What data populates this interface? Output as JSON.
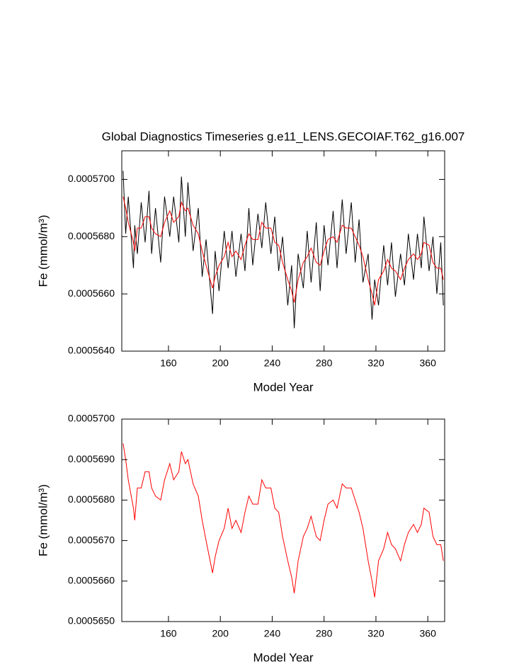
{
  "chart_data": [
    {
      "type": "line",
      "title": "Global Diagnostics Timeseries g.e11_LENS.GECOIAF.T62_g16.007",
      "xlabel": "Model Year",
      "ylabel": "Fe (mmol/m³)",
      "x": [
        125,
        127,
        129,
        133,
        134,
        136,
        139,
        142,
        145,
        147,
        150,
        154,
        157,
        161,
        164,
        168,
        170,
        173,
        175,
        179,
        183,
        186,
        189,
        194,
        196,
        199,
        203,
        206,
        209,
        212,
        216,
        219,
        222,
        225,
        229,
        232,
        235,
        239,
        242,
        245,
        248,
        252,
        255,
        257,
        260,
        264,
        267,
        270,
        274,
        277,
        280,
        283,
        287,
        290,
        294,
        297,
        301,
        304,
        307,
        310,
        314,
        317,
        319,
        322,
        326,
        329,
        332,
        335,
        339,
        342,
        345,
        349,
        352,
        355,
        357,
        361,
        364,
        367,
        370,
        372
      ],
      "series": [
        {
          "color": "#000000",
          "values": [
            0.0005703,
            0.0005681,
            0.0005694,
            0.0005669,
            0.0005684,
            0.0005674,
            0.0005692,
            0.0005678,
            0.0005696,
            0.0005674,
            0.000569,
            0.0005671,
            0.0005694,
            0.000568,
            0.0005694,
            0.0005678,
            0.0005701,
            0.000568,
            0.0005699,
            0.0005675,
            0.000569,
            0.0005666,
            0.0005679,
            0.0005653,
            0.0005675,
            0.0005661,
            0.0005682,
            0.0005669,
            0.0005682,
            0.0005666,
            0.0005681,
            0.0005668,
            0.000569,
            0.000567,
            0.0005688,
            0.0005676,
            0.0005692,
            0.0005674,
            0.0005687,
            0.0005668,
            0.000568,
            0.0005656,
            0.000567,
            0.0005648,
            0.0005674,
            0.0005662,
            0.0005682,
            0.0005664,
            0.0005685,
            0.0005661,
            0.0005684,
            0.000567,
            0.0005689,
            0.0005669,
            0.0005693,
            0.0005674,
            0.0005692,
            0.0005671,
            0.0005686,
            0.0005664,
            0.0005674,
            0.0005651,
            0.0005665,
            0.0005656,
            0.0005677,
            0.0005663,
            0.0005678,
            0.0005659,
            0.0005674,
            0.0005663,
            0.0005681,
            0.0005665,
            0.0005681,
            0.0005669,
            0.0005687,
            0.0005668,
            0.000568,
            0.000566,
            0.0005678,
            0.0005656
          ]
        },
        {
          "color": "#ff0000",
          "values": [
            0.0005694,
            0.000569,
            0.0005685,
            0.0005678,
            0.0005675,
            0.0005683,
            0.0005683,
            0.0005687,
            0.0005687,
            0.0005683,
            0.0005681,
            0.000568,
            0.0005685,
            0.0005689,
            0.0005685,
            0.0005687,
            0.0005692,
            0.0005689,
            0.000569,
            0.0005684,
            0.0005681,
            0.0005675,
            0.000567,
            0.0005662,
            0.0005666,
            0.000567,
            0.0005673,
            0.0005678,
            0.0005673,
            0.0005675,
            0.0005672,
            0.0005677,
            0.0005681,
            0.0005679,
            0.0005679,
            0.0005685,
            0.0005683,
            0.0005683,
            0.0005678,
            0.0005677,
            0.0005671,
            0.0005665,
            0.0005661,
            0.0005657,
            0.0005665,
            0.0005671,
            0.0005673,
            0.0005676,
            0.0005671,
            0.000567,
            0.0005675,
            0.0005679,
            0.000568,
            0.0005678,
            0.0005684,
            0.0005683,
            0.0005683,
            0.000568,
            0.0005677,
            0.0005673,
            0.0005665,
            0.000566,
            0.0005656,
            0.0005665,
            0.0005668,
            0.0005672,
            0.0005669,
            0.0005668,
            0.0005665,
            0.0005669,
            0.0005672,
            0.0005674,
            0.0005672,
            0.0005674,
            0.0005678,
            0.0005677,
            0.0005671,
            0.0005669,
            0.0005669,
            0.0005665
          ]
        }
      ],
      "xlim": [
        124,
        373
      ],
      "xticks": [
        160,
        200,
        240,
        280,
        320,
        360
      ],
      "ylim": [
        0.000564,
        0.000571
      ],
      "yticks": [
        {
          "value": 0.000564,
          "label": "0.0005640"
        },
        {
          "value": 0.000566,
          "label": "0.0005660"
        },
        {
          "value": 0.000568,
          "label": "0.0005680"
        },
        {
          "value": 0.00057,
          "label": "0.0005700"
        }
      ]
    },
    {
      "type": "line",
      "xlabel": "Model Year",
      "ylabel": "Fe (mmol/m³)",
      "x": [
        125,
        127,
        129,
        133,
        134,
        136,
        139,
        142,
        145,
        147,
        150,
        154,
        157,
        161,
        164,
        168,
        170,
        173,
        175,
        179,
        183,
        186,
        189,
        194,
        196,
        199,
        203,
        206,
        209,
        212,
        216,
        219,
        222,
        225,
        229,
        232,
        235,
        239,
        242,
        245,
        248,
        252,
        255,
        257,
        260,
        264,
        267,
        270,
        274,
        277,
        280,
        283,
        287,
        290,
        294,
        297,
        301,
        304,
        307,
        310,
        314,
        317,
        319,
        322,
        326,
        329,
        332,
        335,
        339,
        342,
        345,
        349,
        352,
        355,
        357,
        361,
        364,
        367,
        370,
        372
      ],
      "series": [
        {
          "color": "#ff0000",
          "values": [
            0.0005694,
            0.000569,
            0.0005685,
            0.0005678,
            0.0005675,
            0.0005683,
            0.0005683,
            0.0005687,
            0.0005687,
            0.0005683,
            0.0005681,
            0.000568,
            0.0005685,
            0.0005689,
            0.0005685,
            0.0005687,
            0.0005692,
            0.0005689,
            0.000569,
            0.0005684,
            0.0005681,
            0.0005675,
            0.000567,
            0.0005662,
            0.0005666,
            0.000567,
            0.0005673,
            0.0005678,
            0.0005673,
            0.0005675,
            0.0005672,
            0.0005677,
            0.0005681,
            0.0005679,
            0.0005679,
            0.0005685,
            0.0005683,
            0.0005683,
            0.0005678,
            0.0005677,
            0.0005671,
            0.0005665,
            0.0005661,
            0.0005657,
            0.0005665,
            0.0005671,
            0.0005673,
            0.0005676,
            0.0005671,
            0.000567,
            0.0005675,
            0.0005679,
            0.000568,
            0.0005678,
            0.0005684,
            0.0005683,
            0.0005683,
            0.000568,
            0.0005677,
            0.0005673,
            0.0005665,
            0.000566,
            0.0005656,
            0.0005665,
            0.0005668,
            0.0005672,
            0.0005669,
            0.0005668,
            0.0005665,
            0.0005669,
            0.0005672,
            0.0005674,
            0.0005672,
            0.0005674,
            0.0005678,
            0.0005677,
            0.0005671,
            0.0005669,
            0.0005669,
            0.0005665
          ]
        }
      ],
      "xlim": [
        124,
        373
      ],
      "xticks": [
        160,
        200,
        240,
        280,
        320,
        360
      ],
      "ylim": [
        0.000565,
        0.00057
      ],
      "yticks": [
        {
          "value": 0.000565,
          "label": "0.0005650"
        },
        {
          "value": 0.000566,
          "label": "0.0005660"
        },
        {
          "value": 0.000567,
          "label": "0.0005670"
        },
        {
          "value": 0.000568,
          "label": "0.0005680"
        },
        {
          "value": 0.000569,
          "label": "0.0005690"
        },
        {
          "value": 0.00057,
          "label": "0.0005700"
        }
      ]
    }
  ]
}
